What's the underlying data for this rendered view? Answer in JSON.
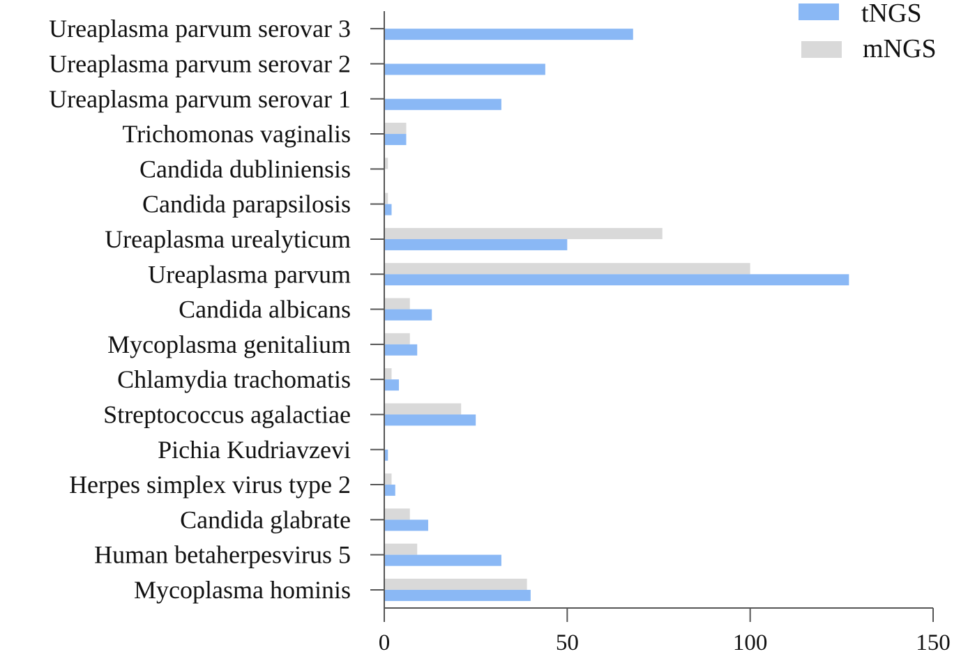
{
  "chart_data": {
    "type": "bar",
    "orientation": "horizontal",
    "categories": [
      "Ureaplasma parvum serovar 3",
      "Ureaplasma parvum serovar 2",
      "Ureaplasma parvum serovar 1",
      "Trichomonas vaginalis",
      "Candida dubliniensis",
      "Candida parapsilosis",
      "Ureaplasma urealyticum",
      "Ureaplasma parvum",
      "Candida albicans",
      "Mycoplasma genitalium",
      "Chlamydia trachomatis",
      "Streptococcus agalactiae",
      "Pichia Kudriavzevi",
      "Herpes simplex virus type 2",
      "Candida glabrate",
      "Human betaherpesvirus 5",
      "Mycoplasma hominis"
    ],
    "series": [
      {
        "name": "tNGS",
        "color": "#8ab8f5",
        "values": [
          68,
          44,
          32,
          6,
          0,
          2,
          50,
          127,
          13,
          9,
          4,
          25,
          1,
          3,
          12,
          32,
          40
        ]
      },
      {
        "name": "mNGS",
        "color": "#d9d9d9",
        "values": [
          0,
          0,
          0,
          6,
          1,
          1,
          76,
          100,
          7,
          7,
          2,
          21,
          0,
          2,
          7,
          9,
          39
        ]
      }
    ],
    "xlim": [
      0,
      150
    ],
    "xticks": [
      0,
      50,
      100,
      150
    ],
    "legend_position": "top-right",
    "grid": false
  }
}
